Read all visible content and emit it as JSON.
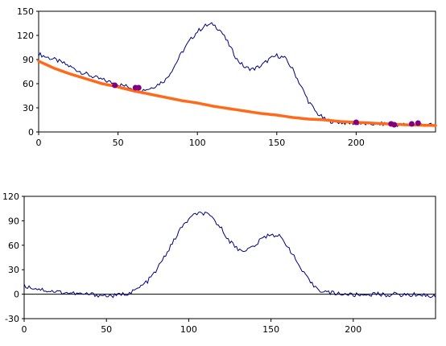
{
  "chart_data": [
    {
      "type": "line",
      "title": "",
      "xlabel": "",
      "ylabel": "",
      "xlim": [
        0,
        250
      ],
      "ylim": [
        0,
        150
      ],
      "xticks": [
        0,
        50,
        100,
        150,
        200
      ],
      "yticks": [
        0,
        30,
        60,
        90,
        120,
        150
      ],
      "grid": false,
      "series": [
        {
          "role": "signal",
          "color": "#000080",
          "x": [
            0,
            5,
            10,
            15,
            20,
            25,
            30,
            35,
            40,
            45,
            50,
            55,
            60,
            65,
            70,
            75,
            80,
            85,
            90,
            95,
            100,
            105,
            110,
            115,
            120,
            125,
            130,
            135,
            140,
            145,
            150,
            155,
            160,
            165,
            170,
            175,
            180,
            185,
            190,
            195,
            200,
            205,
            210,
            215,
            220,
            225,
            230,
            235,
            240,
            245,
            250
          ],
          "y": [
            97,
            93,
            90,
            86,
            81,
            76,
            72,
            68,
            65,
            62,
            59,
            57,
            54,
            52,
            54,
            59,
            65,
            80,
            98,
            113,
            125,
            132,
            134,
            125,
            108,
            90,
            80,
            78,
            82,
            90,
            95,
            92,
            78,
            58,
            38,
            24,
            16,
            13,
            12,
            11,
            11,
            10,
            10,
            10,
            10,
            9,
            9,
            9,
            9,
            9,
            8
          ]
        },
        {
          "role": "baseline-fit",
          "color": "#ff6a1a",
          "x": [
            0,
            10,
            20,
            30,
            40,
            50,
            60,
            70,
            80,
            90,
            100,
            110,
            120,
            130,
            140,
            150,
            160,
            170,
            180,
            190,
            200,
            210,
            220,
            230,
            240,
            250
          ],
          "y": [
            88,
            79,
            72,
            66,
            60,
            56,
            51,
            47,
            43,
            39,
            36,
            32,
            29,
            26,
            23,
            21,
            18,
            16,
            15,
            13,
            12,
            11,
            10,
            9,
            8.5,
            8
          ]
        },
        {
          "role": "anchor-points",
          "color": "#800080",
          "x": [
            48,
            61,
            63,
            200,
            222,
            224,
            235,
            239
          ],
          "y": [
            58,
            55,
            55,
            12,
            10,
            9,
            10,
            11
          ]
        }
      ]
    },
    {
      "type": "line",
      "title": "",
      "xlabel": "",
      "ylabel": "",
      "xlim": [
        0,
        250
      ],
      "ylim": [
        -30,
        120
      ],
      "xticks": [
        0,
        50,
        100,
        150,
        200
      ],
      "yticks": [
        -30,
        0,
        30,
        60,
        90,
        120
      ],
      "grid": false,
      "series": [
        {
          "role": "corrected-signal",
          "color": "#000080",
          "x": [
            0,
            5,
            10,
            15,
            20,
            25,
            30,
            35,
            40,
            45,
            50,
            55,
            60,
            65,
            70,
            75,
            80,
            85,
            90,
            95,
            100,
            105,
            110,
            115,
            120,
            125,
            130,
            135,
            140,
            145,
            150,
            155,
            160,
            165,
            170,
            175,
            180,
            185,
            190,
            195,
            200,
            205,
            210,
            215,
            220,
            225,
            230,
            235,
            240,
            245,
            250
          ],
          "y": [
            10,
            8,
            6,
            4,
            3,
            2,
            1,
            0,
            0,
            -1,
            -2,
            -2,
            0,
            2,
            8,
            16,
            28,
            45,
            62,
            80,
            92,
            99,
            99,
            92,
            80,
            65,
            55,
            54,
            59,
            69,
            74,
            71,
            60,
            42,
            25,
            12,
            5,
            2,
            1,
            0,
            -1,
            -1,
            0,
            0,
            -1,
            0,
            -1,
            -1,
            0,
            -2,
            -3
          ]
        }
      ]
    }
  ]
}
